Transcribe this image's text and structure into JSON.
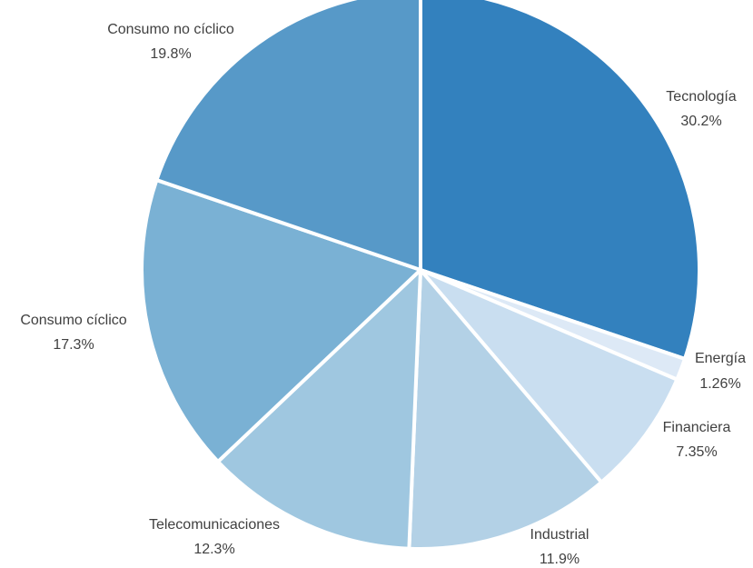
{
  "chart_data": {
    "type": "pie",
    "title": "",
    "start_angle_deg": 0,
    "direction": "clockwise",
    "slices": [
      {
        "label": "Tecnología",
        "value": 30.2,
        "value_label": "30.2%",
        "color": "#3381BE"
      },
      {
        "label": "Energía",
        "value": 1.26,
        "value_label": "1.26%",
        "color": "#DDE9F6"
      },
      {
        "label": "Financiera",
        "value": 7.35,
        "value_label": "7.35%",
        "color": "#C9DEF0"
      },
      {
        "label": "Industrial",
        "value": 11.9,
        "value_label": "11.9%",
        "color": "#B3D1E6"
      },
      {
        "label": "Telecomunicaciones",
        "value": 12.3,
        "value_label": "12.3%",
        "color": "#9FC7E0"
      },
      {
        "label": "Consumo cíclico",
        "value": 17.3,
        "value_label": "17.3%",
        "color": "#7AB1D4"
      },
      {
        "label": "Consumo no cíclico",
        "value": 19.8,
        "value_label": "19.8%",
        "color": "#5799C8"
      }
    ]
  }
}
